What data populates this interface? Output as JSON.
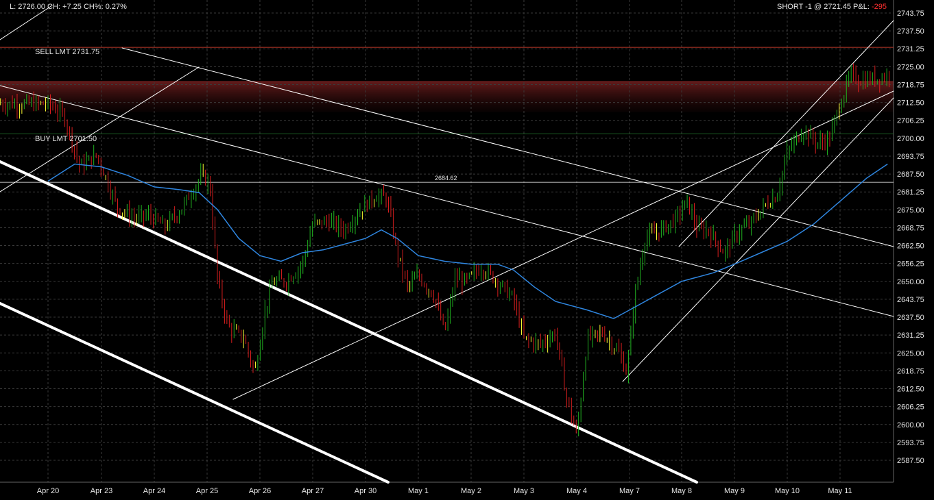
{
  "header": {
    "quote_text": "L: 2726.00 CH: +7.25 CH%: 0.27%",
    "position_text": "SHORT -1 @ 2721.45 P&L: ",
    "pnl_value": "-295"
  },
  "orders": {
    "sell_label": "SELL LMT 2731.75",
    "buy_label": "BUY LMT 2701.50"
  },
  "colors": {
    "background": "#000000",
    "grid": "#3a3a3a",
    "up_candle": "#21b321",
    "down_candle": "#d81e1e",
    "doji": "#ffff33",
    "moving_average": "#2f86e0",
    "trendline": "#ffffff",
    "sell_line": "#c0392b",
    "resistance_zone": "#5a1a1a",
    "pnl_negative": "#ff3030"
  },
  "chart_data": {
    "type": "candlestick",
    "title": "",
    "xlabel": "",
    "ylabel": "",
    "grid": true,
    "y_range": [
      2583,
      2747
    ],
    "y_ticks": [
      "2743.75",
      "2737.50",
      "2731.25",
      "2725.00",
      "2718.75",
      "2712.50",
      "2706.25",
      "2700.00",
      "2693.75",
      "2687.50",
      "2681.25",
      "2675.00",
      "2668.75",
      "2662.50",
      "2656.25",
      "2650.00",
      "2643.75",
      "2637.50",
      "2631.25",
      "2625.00",
      "2618.75",
      "2612.50",
      "2606.25",
      "2600.00",
      "2593.75",
      "2587.50"
    ],
    "x_ticks": [
      "Apr 20",
      "Apr 23",
      "Apr 24",
      "Apr 25",
      "Apr 26",
      "Apr 27",
      "Apr 30",
      "May 1",
      "May 2",
      "May 3",
      "May 4",
      "May 7",
      "May 8",
      "May 9",
      "May 10",
      "May 11"
    ],
    "horizontal_levels": [
      {
        "name": "sell-limit",
        "value": 2731.75
      },
      {
        "name": "buy-limit",
        "value": 2701.5
      },
      {
        "name": "marked-level",
        "value": 2684.62,
        "label": "2684.62"
      }
    ],
    "resistance_zone": [
      2713,
      2720
    ],
    "price_path": [
      [
        0,
        2712
      ],
      [
        0.3,
        2708
      ],
      [
        0.6,
        2690
      ],
      [
        0.9,
        2694
      ],
      [
        1.0,
        2690
      ],
      [
        1.3,
        2676
      ],
      [
        1.6,
        2672
      ],
      [
        1.9,
        2673
      ],
      [
        2.2,
        2669
      ],
      [
        2.5,
        2675
      ],
      [
        2.9,
        2687
      ],
      [
        3.05,
        2684
      ],
      [
        3.2,
        2650
      ],
      [
        3.4,
        2634
      ],
      [
        3.7,
        2630
      ],
      [
        3.9,
        2618
      ],
      [
        4.1,
        2640
      ],
      [
        4.25,
        2650
      ],
      [
        4.5,
        2650
      ],
      [
        4.8,
        2656
      ],
      [
        5.0,
        2670
      ],
      [
        5.3,
        2671
      ],
      [
        5.6,
        2668
      ],
      [
        5.9,
        2675
      ],
      [
        6.2,
        2680
      ],
      [
        6.4,
        2679
      ],
      [
        6.6,
        2660
      ],
      [
        6.8,
        2648
      ],
      [
        7.0,
        2652
      ],
      [
        7.3,
        2645
      ],
      [
        7.5,
        2632
      ],
      [
        7.7,
        2651
      ],
      [
        7.9,
        2650
      ],
      [
        8.2,
        2655
      ],
      [
        8.5,
        2650
      ],
      [
        8.8,
        2644
      ],
      [
        9.0,
        2630
      ],
      [
        9.3,
        2628
      ],
      [
        9.6,
        2632
      ],
      [
        9.8,
        2610
      ],
      [
        10.0,
        2596
      ],
      [
        10.2,
        2630
      ],
      [
        10.5,
        2632
      ],
      [
        10.8,
        2625
      ],
      [
        10.95,
        2618
      ],
      [
        11.1,
        2645
      ],
      [
        11.3,
        2665
      ],
      [
        11.6,
        2668
      ],
      [
        11.9,
        2672
      ],
      [
        12.1,
        2678
      ],
      [
        12.3,
        2668
      ],
      [
        12.5,
        2668
      ],
      [
        12.8,
        2660
      ],
      [
        13.1,
        2668
      ],
      [
        13.3,
        2670
      ],
      [
        13.6,
        2677
      ],
      [
        13.8,
        2680
      ],
      [
        14.0,
        2695
      ],
      [
        14.3,
        2703
      ],
      [
        14.6,
        2698
      ],
      [
        14.8,
        2700
      ],
      [
        15.0,
        2712
      ],
      [
        15.2,
        2722
      ],
      [
        15.4,
        2720
      ],
      [
        15.7,
        2721
      ],
      [
        15.95,
        2722
      ]
    ],
    "moving_average": [
      [
        0,
        2685
      ],
      [
        0.5,
        2691
      ],
      [
        1.0,
        2690
      ],
      [
        1.5,
        2687
      ],
      [
        2.0,
        2683
      ],
      [
        2.5,
        2682
      ],
      [
        2.85,
        2681
      ],
      [
        3.2,
        2675
      ],
      [
        3.6,
        2665
      ],
      [
        4.0,
        2659
      ],
      [
        4.4,
        2657
      ],
      [
        4.8,
        2660
      ],
      [
        5.2,
        2661
      ],
      [
        5.6,
        2663
      ],
      [
        6.0,
        2665
      ],
      [
        6.3,
        2668
      ],
      [
        6.6,
        2665
      ],
      [
        7.0,
        2659
      ],
      [
        7.5,
        2657
      ],
      [
        8.0,
        2656
      ],
      [
        8.5,
        2656
      ],
      [
        8.8,
        2654
      ],
      [
        9.2,
        2648
      ],
      [
        9.6,
        2643
      ],
      [
        10.2,
        2640
      ],
      [
        10.7,
        2637
      ],
      [
        11.0,
        2640
      ],
      [
        11.5,
        2645
      ],
      [
        12.0,
        2650
      ],
      [
        12.6,
        2653
      ],
      [
        13.0,
        2656
      ],
      [
        13.5,
        2660
      ],
      [
        14.0,
        2664
      ],
      [
        14.5,
        2670
      ],
      [
        15.0,
        2678
      ],
      [
        15.5,
        2686
      ],
      [
        15.9,
        2691
      ]
    ]
  }
}
